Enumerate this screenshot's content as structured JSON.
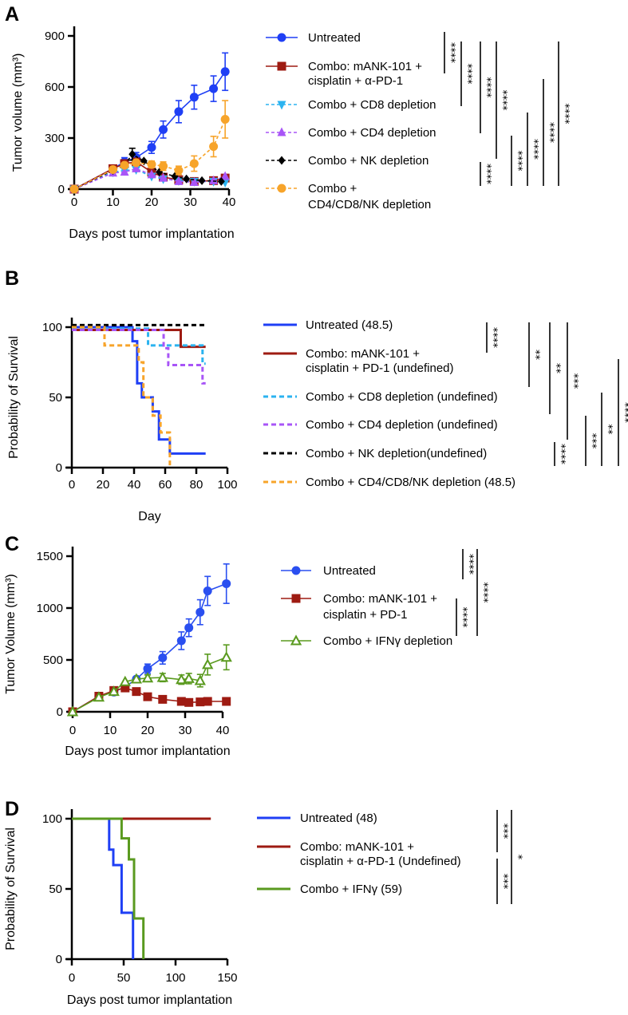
{
  "chart_data": [
    {
      "panel": "A",
      "type": "line",
      "xlabel": "Days post tumor implantation",
      "ylabel": "Tumor volume (mm³)",
      "xlim": [
        0,
        40
      ],
      "ylim": [
        0,
        900
      ],
      "xticks": [
        0,
        10,
        20,
        30,
        40
      ],
      "yticks": [
        0,
        300,
        600,
        900
      ],
      "series": [
        {
          "name": "Untreated",
          "legend_lines": [
            "Untreated"
          ],
          "color": "#1f3ff5",
          "marker": "circle",
          "dash": false,
          "x": [
            0,
            10,
            13,
            16,
            20,
            23,
            27,
            31,
            36,
            39
          ],
          "y": [
            0,
            120,
            160,
            185,
            245,
            350,
            455,
            540,
            590,
            690
          ],
          "err": [
            0,
            10,
            25,
            30,
            35,
            50,
            65,
            70,
            75,
            110
          ]
        },
        {
          "name": "Combo: mANK-101 + cisplatin + α-PD-1",
          "legend_lines": [
            "Combo: mANK-101 +",
            "cisplatin + α-PD-1"
          ],
          "color": "#9e1b12",
          "marker": "square",
          "dash": false,
          "x": [
            0,
            10,
            13,
            16,
            20,
            23,
            27,
            31,
            36,
            39
          ],
          "y": [
            0,
            120,
            150,
            160,
            100,
            70,
            55,
            45,
            50,
            65
          ]
        },
        {
          "name": "Combo + CD8 depletion",
          "legend_lines": [
            "Combo + CD8 depletion"
          ],
          "color": "#2bb3f0",
          "marker": "tri-down",
          "dash": true,
          "x": [
            0,
            10,
            13,
            16,
            20,
            23,
            27,
            31,
            36,
            39
          ],
          "y": [
            0,
            100,
            110,
            115,
            75,
            60,
            50,
            45,
            45,
            40
          ]
        },
        {
          "name": "Combo + CD4 depletion",
          "legend_lines": [
            "Combo + CD4 depletion"
          ],
          "color": "#a855f7",
          "marker": "tri-up",
          "dash": true,
          "x": [
            0,
            10,
            13,
            16,
            20,
            23,
            27,
            31,
            36,
            39
          ],
          "y": [
            0,
            95,
            100,
            120,
            85,
            65,
            45,
            40,
            50,
            75
          ]
        },
        {
          "name": "Combo + NK depletion",
          "legend_lines": [
            "Combo + NK depletion"
          ],
          "color": "#000000",
          "marker": "diamond",
          "dash": true,
          "x": [
            0,
            10,
            13,
            15,
            18,
            22,
            26,
            29,
            33,
            38
          ],
          "y": [
            0,
            110,
            140,
            205,
            165,
            100,
            75,
            60,
            50,
            45
          ],
          "err": [
            0,
            0,
            0,
            35,
            0,
            0,
            0,
            0,
            0,
            0
          ]
        },
        {
          "name": "Combo + CD4/CD8/NK depletion",
          "legend_lines": [
            "Combo +",
            "CD4/CD8/NK depletion"
          ],
          "color": "#f7a42a",
          "marker": "circle",
          "dash": true,
          "x": [
            0,
            10,
            13,
            16,
            20,
            23,
            27,
            31,
            36,
            39
          ],
          "y": [
            0,
            115,
            140,
            155,
            145,
            135,
            110,
            150,
            250,
            410
          ],
          "err": [
            0,
            0,
            0,
            0,
            20,
            25,
            25,
            45,
            60,
            110
          ]
        }
      ],
      "significance": [
        "****",
        "****",
        "****",
        "****",
        "****",
        "****",
        "****",
        "****",
        "****"
      ]
    },
    {
      "panel": "B",
      "type": "line",
      "xlabel": "Day",
      "ylabel": "Probability of Survival",
      "xlim": [
        0,
        100
      ],
      "ylim": [
        0,
        100
      ],
      "xticks": [
        0,
        20,
        40,
        60,
        80,
        100
      ],
      "yticks": [
        0,
        50,
        100
      ],
      "series": [
        {
          "name": "Untreated (48.5)",
          "legend_lines": [
            "Untreated (48.5)"
          ],
          "color": "#1f3ff5",
          "dash": false,
          "steps": [
            [
              0,
              100
            ],
            [
              39,
              100
            ],
            [
              39,
              90
            ],
            [
              42,
              90
            ],
            [
              42,
              60
            ],
            [
              45,
              60
            ],
            [
              45,
              50
            ],
            [
              52,
              50
            ],
            [
              52,
              40
            ],
            [
              56,
              40
            ],
            [
              56,
              20
            ],
            [
              63,
              20
            ],
            [
              63,
              10
            ],
            [
              86,
              10
            ]
          ]
        },
        {
          "name": "Combo: mANK-101 + cisplatin + PD-1 (undefined)",
          "legend_lines": [
            "Combo: mANK-101 +",
            "cisplatin + PD-1 (undefined)"
          ],
          "color": "#9e1b12",
          "dash": false,
          "steps": [
            [
              0,
              98
            ],
            [
              70,
              98
            ],
            [
              70,
              86
            ],
            [
              86,
              86
            ]
          ]
        },
        {
          "name": "Combo + CD8 depletion (undefined)",
          "legend_lines": [
            "Combo + CD8 depletion (undefined)"
          ],
          "color": "#2bb3f0",
          "dash": true,
          "steps": [
            [
              0,
              99
            ],
            [
              49,
              99
            ],
            [
              49,
              87
            ],
            [
              84,
              87
            ],
            [
              84,
              74
            ],
            [
              86,
              74
            ]
          ]
        },
        {
          "name": "Combo + CD4 depletion (undefined)",
          "legend_lines": [
            "Combo + CD4 depletion (undefined)"
          ],
          "color": "#a855f7",
          "dash": true,
          "steps": [
            [
              0,
              98
            ],
            [
              59,
              98
            ],
            [
              59,
              85
            ],
            [
              62,
              85
            ],
            [
              62,
              73
            ],
            [
              84,
              73
            ],
            [
              84,
              60
            ],
            [
              86,
              60
            ]
          ]
        },
        {
          "name": "Combo + NK depletion(undefined)",
          "legend_lines": [
            "Combo + NK depletion(undefined)"
          ],
          "color": "#000000",
          "dash": true,
          "steps": [
            [
              0,
              101.5
            ],
            [
              86,
              101.5
            ]
          ]
        },
        {
          "name": "Combo + CD4/CD8/NK depletion (48.5)",
          "legend_lines": [
            "Combo + CD4/CD8/NK depletion (48.5)"
          ],
          "color": "#f7a42a",
          "dash": true,
          "steps": [
            [
              0,
              100
            ],
            [
              21,
              100
            ],
            [
              21,
              87
            ],
            [
              43,
              87
            ],
            [
              43,
              75
            ],
            [
              46,
              75
            ],
            [
              46,
              50
            ],
            [
              52,
              50
            ],
            [
              52,
              37
            ],
            [
              57,
              37
            ],
            [
              57,
              25
            ],
            [
              63,
              25
            ],
            [
              63,
              0
            ]
          ]
        }
      ],
      "significance": [
        "****",
        "**",
        "**",
        "***",
        "****",
        "***",
        "**",
        "****"
      ]
    },
    {
      "panel": "C",
      "type": "line",
      "xlabel": "Days post tumor implantation",
      "ylabel": "Tumor Volume (mm³)",
      "xlim": [
        0,
        40
      ],
      "ylim": [
        0,
        1500
      ],
      "xticks": [
        0,
        10,
        20,
        30,
        40
      ],
      "yticks": [
        0,
        500,
        1000,
        1500
      ],
      "series": [
        {
          "name": "Untreated",
          "legend_lines": [
            "Untreated"
          ],
          "color": "#2a4ff0",
          "marker": "circle",
          "dash": false,
          "x": [
            0,
            7,
            11,
            14,
            17,
            20,
            24,
            29,
            31,
            34,
            36,
            41
          ],
          "y": [
            0,
            150,
            190,
            240,
            315,
            415,
            520,
            685,
            810,
            960,
            1165,
            1235
          ],
          "err": [
            0,
            15,
            20,
            20,
            25,
            45,
            60,
            85,
            85,
            120,
            140,
            190
          ]
        },
        {
          "name": "Combo: mANK-101 + cisplatin + PD-1",
          "legend_lines": [
            "Combo: mANK-101 +",
            "cisplatin + PD-1"
          ],
          "color": "#9e1b12",
          "marker": "square",
          "dash": false,
          "x": [
            0,
            7,
            11,
            14,
            17,
            20,
            24,
            29,
            31,
            34,
            36,
            41
          ],
          "y": [
            0,
            150,
            205,
            230,
            195,
            145,
            120,
            100,
            90,
            95,
            100,
            100
          ]
        },
        {
          "name": "Combo + IFNγ depletion",
          "legend_lines": [
            "Combo + IFNγ depletion"
          ],
          "color": "#5a9a1f",
          "marker": "tri-open",
          "dash": false,
          "x": [
            0,
            7,
            11,
            14,
            17,
            20,
            24,
            29,
            31,
            34,
            36,
            41
          ],
          "y": [
            0,
            140,
            195,
            290,
            315,
            325,
            330,
            310,
            320,
            300,
            455,
            525
          ],
          "err": [
            0,
            0,
            0,
            0,
            0,
            30,
            40,
            45,
            50,
            60,
            100,
            120
          ]
        }
      ],
      "significance": [
        "****",
        "****",
        "****"
      ]
    },
    {
      "panel": "D",
      "type": "line",
      "xlabel": "Days post tumor implantation",
      "ylabel": "Probability of Survival",
      "xlim": [
        0,
        150
      ],
      "ylim": [
        0,
        100
      ],
      "xticks": [
        0,
        50,
        100,
        150
      ],
      "yticks": [
        0,
        50,
        100
      ],
      "series": [
        {
          "name": "Untreated (48)",
          "legend_lines": [
            "Untreated (48)"
          ],
          "color": "#1f3ff5",
          "dash": false,
          "steps": [
            [
              0,
              100
            ],
            [
              36,
              100
            ],
            [
              36,
              78
            ],
            [
              40,
              78
            ],
            [
              40,
              67
            ],
            [
              48,
              67
            ],
            [
              48,
              33
            ],
            [
              59,
              33
            ],
            [
              59,
              0
            ]
          ]
        },
        {
          "name": "Combo: mANK-101 + cisplatin + α-PD-1 (Undefined)",
          "legend_lines": [
            "Combo: mANK-101 +",
            "cisplatin + α-PD-1  (Undefined)"
          ],
          "color": "#9e1b12",
          "dash": false,
          "steps": [
            [
              0,
              100
            ],
            [
              134,
              100
            ]
          ]
        },
        {
          "name": "Combo + IFNγ (59)",
          "legend_lines": [
            "Combo + IFNγ (59)"
          ],
          "color": "#5a9a1f",
          "dash": false,
          "steps": [
            [
              0,
              100
            ],
            [
              48,
              100
            ],
            [
              48,
              86
            ],
            [
              55,
              86
            ],
            [
              55,
              71
            ],
            [
              60,
              71
            ],
            [
              60,
              29
            ],
            [
              69,
              29
            ],
            [
              69,
              0
            ]
          ]
        }
      ],
      "significance": [
        "***",
        "***",
        "*"
      ]
    }
  ]
}
